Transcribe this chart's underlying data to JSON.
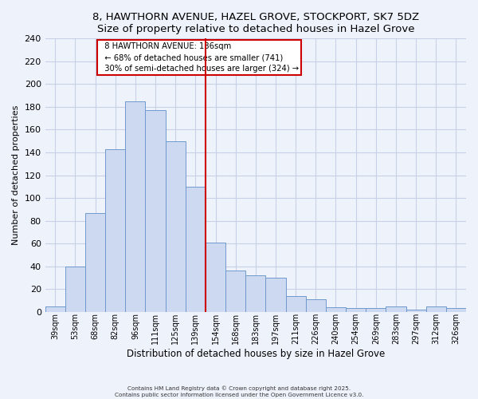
{
  "title": "8, HAWTHORN AVENUE, HAZEL GROVE, STOCKPORT, SK7 5DZ",
  "subtitle": "Size of property relative to detached houses in Hazel Grove",
  "xlabel": "Distribution of detached houses by size in Hazel Grove",
  "ylabel": "Number of detached properties",
  "bar_labels": [
    "39sqm",
    "53sqm",
    "68sqm",
    "82sqm",
    "96sqm",
    "111sqm",
    "125sqm",
    "139sqm",
    "154sqm",
    "168sqm",
    "183sqm",
    "197sqm",
    "211sqm",
    "226sqm",
    "240sqm",
    "254sqm",
    "269sqm",
    "283sqm",
    "297sqm",
    "312sqm",
    "326sqm"
  ],
  "bar_values": [
    5,
    40,
    87,
    143,
    185,
    177,
    150,
    110,
    61,
    36,
    32,
    30,
    14,
    11,
    4,
    3,
    3,
    5,
    2,
    5,
    3
  ],
  "bar_color": "#ccd9f0",
  "bar_edge_color": "#7099cc",
  "vline_x": 7.5,
  "vline_color": "#cc0000",
  "annotation_title": "8 HAWTHORN AVENUE: 136sqm",
  "annotation_line1": "← 68% of detached houses are smaller (741)",
  "annotation_line2": "30% of semi-detached houses are larger (324) →",
  "box_facecolor": "white",
  "box_edgecolor": "#cc0000",
  "ylim": [
    0,
    240
  ],
  "yticks": [
    0,
    20,
    40,
    60,
    80,
    100,
    120,
    140,
    160,
    180,
    200,
    220,
    240
  ],
  "footer1": "Contains HM Land Registry data © Crown copyright and database right 2025.",
  "footer2": "Contains public sector information licensed under the Open Government Licence v3.0.",
  "bg_color": "#eef2fb",
  "grid_color": "#c8d0e8"
}
